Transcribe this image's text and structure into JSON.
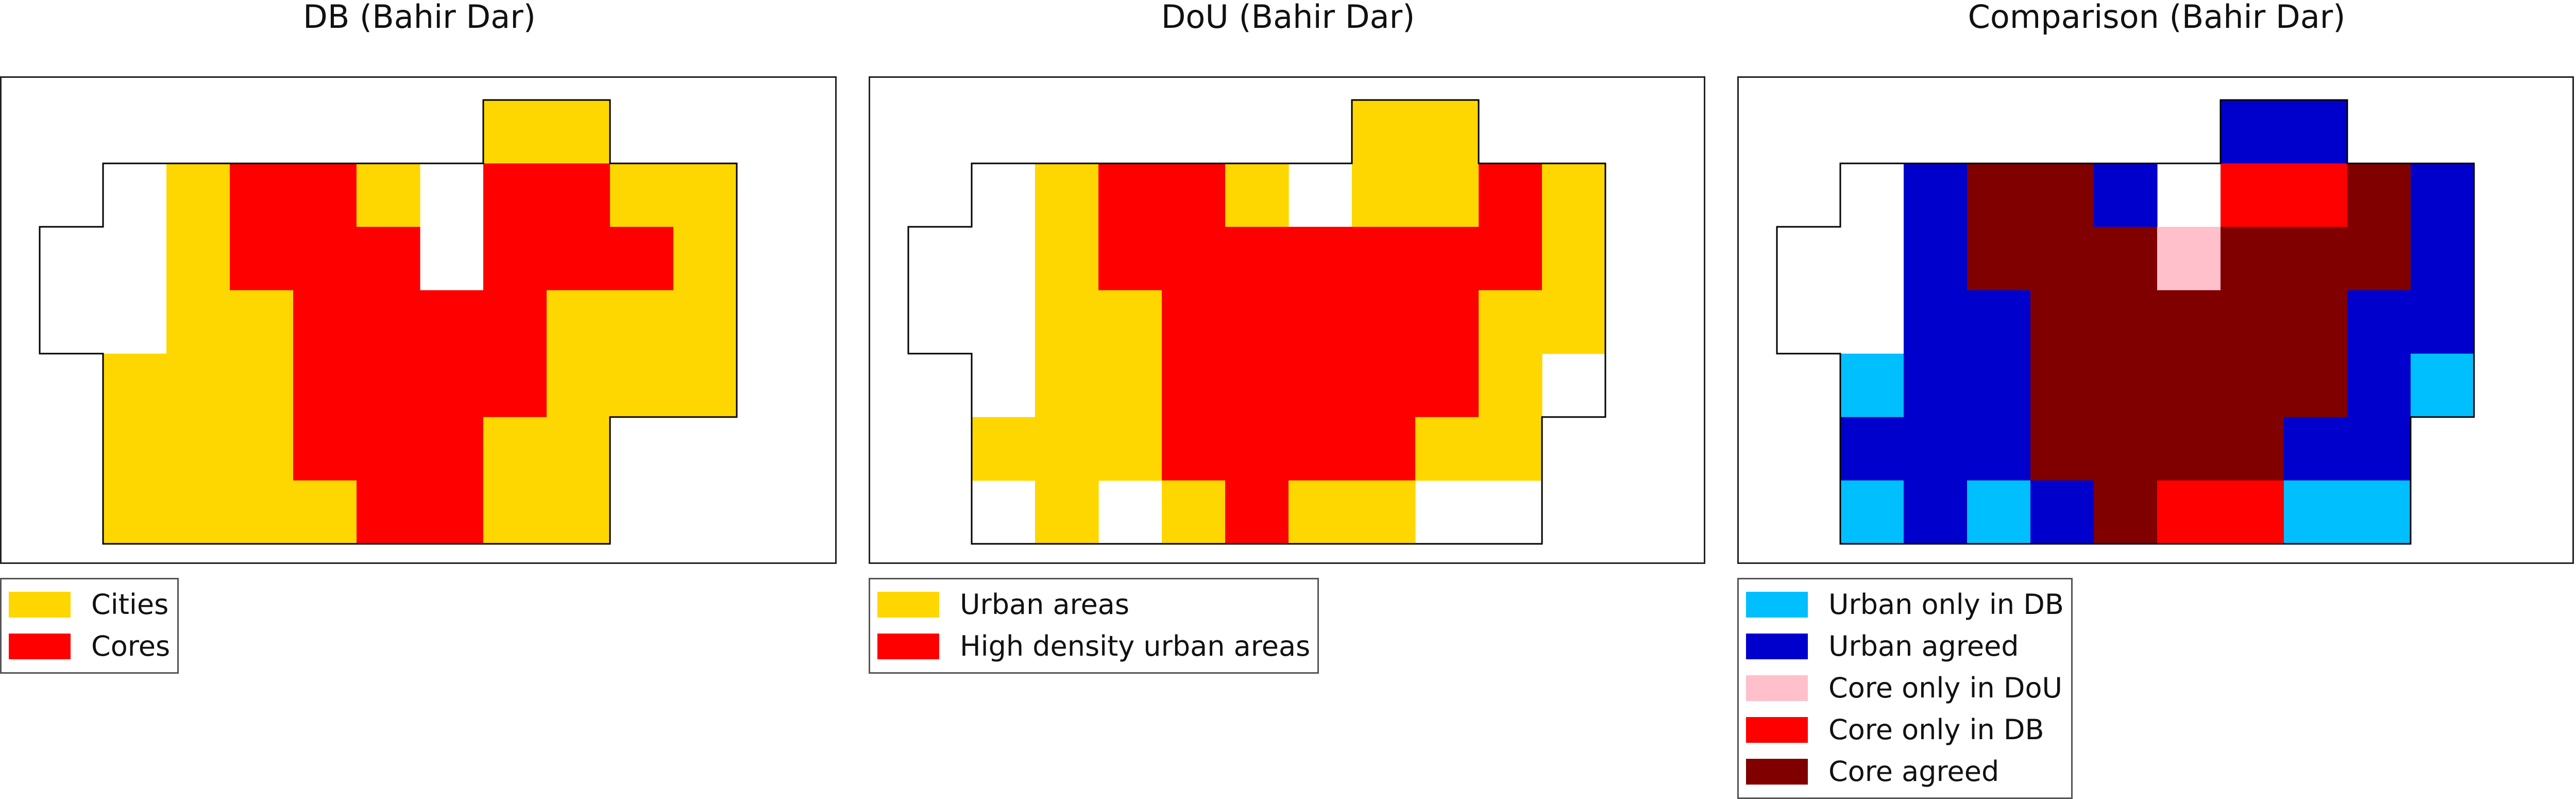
{
  "panels": [
    {
      "title": "DB (Bahir Dar)",
      "legend": [
        {
          "label": "Cities",
          "color": "#FFD700"
        },
        {
          "label": "Cores",
          "color": "#FF0000"
        }
      ],
      "grid": [
        "-------YY--",
        "-.YRRYWRRYY",
        "..YRRRWRRRY",
        "..YYRRRRYYY",
        "-YYYRRRRYYY",
        "-YYYRRRYY--",
        "-YYYYRRYY--"
      ]
    },
    {
      "title": "DoU (Bahir Dar)",
      "legend": [
        {
          "label": "Urban areas",
          "color": "#FFD700"
        },
        {
          "label": "High density urban areas",
          "color": "#FF0000"
        }
      ],
      "grid": [
        "-------YY--",
        "-.YRRYWYYRY",
        "..YRRRRRRRY",
        "..YYRRRRRYY",
        "-.YYRRRRRYW",
        "-YYYRRRRYY-",
        "-WYWYRYYWW-"
      ]
    },
    {
      "title": "Comparison (Bahir Dar)",
      "legend": [
        {
          "label": "Urban only in DB",
          "color": "#00BFFF"
        },
        {
          "label": "Urban agreed",
          "color": "#0000CD"
        },
        {
          "label": "Core only in DoU",
          "color": "#FFC0CB"
        },
        {
          "label": "Core only in DB",
          "color": "#FF0000"
        },
        {
          "label": "Core agreed",
          "color": "#800000"
        }
      ],
      "grid": [
        "-------BB--",
        "-.BMMBWRRMB",
        "..BMMMPMMMB",
        "..BBMMMMMBB",
        "-CBBMMMMMBC",
        "-BBBMMMMBB-",
        "-CBCBMRRCC-"
      ]
    }
  ]
}
